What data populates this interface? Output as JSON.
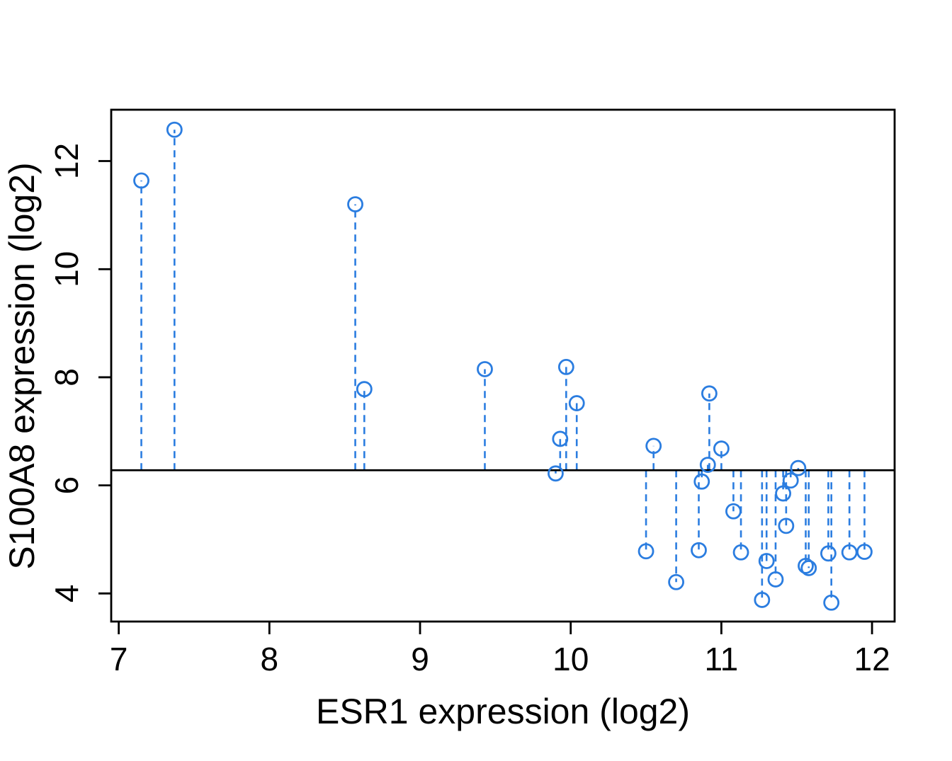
{
  "figure": {
    "xlabel": "ESR1 expression (log2)",
    "ylabel": "S100A8 expression (log2)"
  },
  "chart_data": {
    "type": "scatter",
    "title": "",
    "xlabel": "ESR1 expression (log2)",
    "ylabel": "S100A8 expression (log2)",
    "xlim": [
      6.95,
      12.15
    ],
    "ylim": [
      3.48,
      12.95
    ],
    "x_ticks": [
      7,
      8,
      9,
      10,
      11,
      12
    ],
    "y_ticks": [
      4,
      6,
      8,
      10,
      12
    ],
    "grid": false,
    "legend": "none",
    "marker": "open-circle",
    "stem_style": "dashed-vertical-from-reference-line",
    "reference_line_y": 6.28,
    "point_color": "#2B7DE0",
    "reference_line_color": "#000000",
    "axis_color": "#000000",
    "points": [
      [
        7.15,
        11.64
      ],
      [
        7.37,
        12.58
      ],
      [
        8.57,
        11.2
      ],
      [
        8.63,
        7.78
      ],
      [
        9.43,
        8.15
      ],
      [
        9.9,
        6.22
      ],
      [
        9.93,
        6.86
      ],
      [
        9.97,
        8.19
      ],
      [
        10.04,
        7.52
      ],
      [
        10.5,
        4.78
      ],
      [
        10.55,
        6.73
      ],
      [
        10.7,
        4.21
      ],
      [
        10.85,
        4.8
      ],
      [
        10.87,
        6.07
      ],
      [
        10.91,
        6.38
      ],
      [
        10.92,
        7.7
      ],
      [
        11.0,
        6.68
      ],
      [
        11.08,
        5.52
      ],
      [
        11.13,
        4.76
      ],
      [
        11.27,
        3.88
      ],
      [
        11.3,
        4.6
      ],
      [
        11.36,
        4.26
      ],
      [
        11.41,
        5.85
      ],
      [
        11.43,
        5.25
      ],
      [
        11.46,
        6.09
      ],
      [
        11.51,
        6.32
      ],
      [
        11.56,
        4.51
      ],
      [
        11.58,
        4.47
      ],
      [
        11.71,
        4.74
      ],
      [
        11.73,
        3.83
      ],
      [
        11.85,
        4.76
      ],
      [
        11.95,
        4.77
      ]
    ]
  }
}
